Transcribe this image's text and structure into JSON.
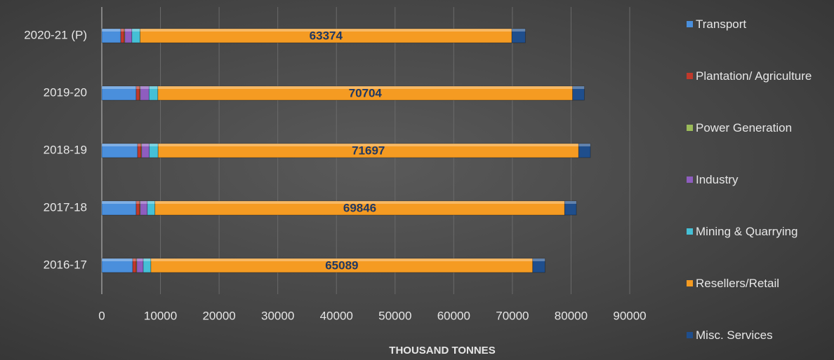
{
  "chart_data": {
    "type": "stacked_barh",
    "x_label": "THOUSAND TONNES",
    "categories": [
      "2020-21 (P)",
      "2019-20",
      "2018-19",
      "2017-18",
      "2016-17"
    ],
    "series": [
      {
        "name": "Transport",
        "color": "#4a8fdc",
        "values": [
          3230,
          5860,
          6100,
          5860,
          5270
        ]
      },
      {
        "name": "Plantation/ Agriculture",
        "color": "#c0392b",
        "values": [
          600,
          600,
          600,
          600,
          600
        ]
      },
      {
        "name": "Power Generation",
        "color": "#9bbb59",
        "values": [
          100,
          100,
          100,
          100,
          100
        ]
      },
      {
        "name": "Industry",
        "color": "#8e5dbf",
        "values": [
          1200,
          1500,
          1300,
          1200,
          1100
        ]
      },
      {
        "name": "Mining & Quarrying",
        "color": "#45c0d6",
        "values": [
          1400,
          1500,
          1500,
          1300,
          1300
        ]
      },
      {
        "name": "Resellers/Retail",
        "color": "#f59b22",
        "values": [
          63374,
          70704,
          71697,
          69846,
          65089
        ],
        "show_labels": true
      },
      {
        "name": "Misc. Services",
        "color": "#1f4e8c",
        "values": [
          2300,
          2000,
          2000,
          2000,
          2100
        ]
      }
    ],
    "xlim": [
      0,
      90000
    ],
    "xticks": [
      0,
      10000,
      20000,
      30000,
      40000,
      50000,
      60000,
      70000,
      80000,
      90000
    ],
    "grid": true,
    "legend": "right"
  }
}
